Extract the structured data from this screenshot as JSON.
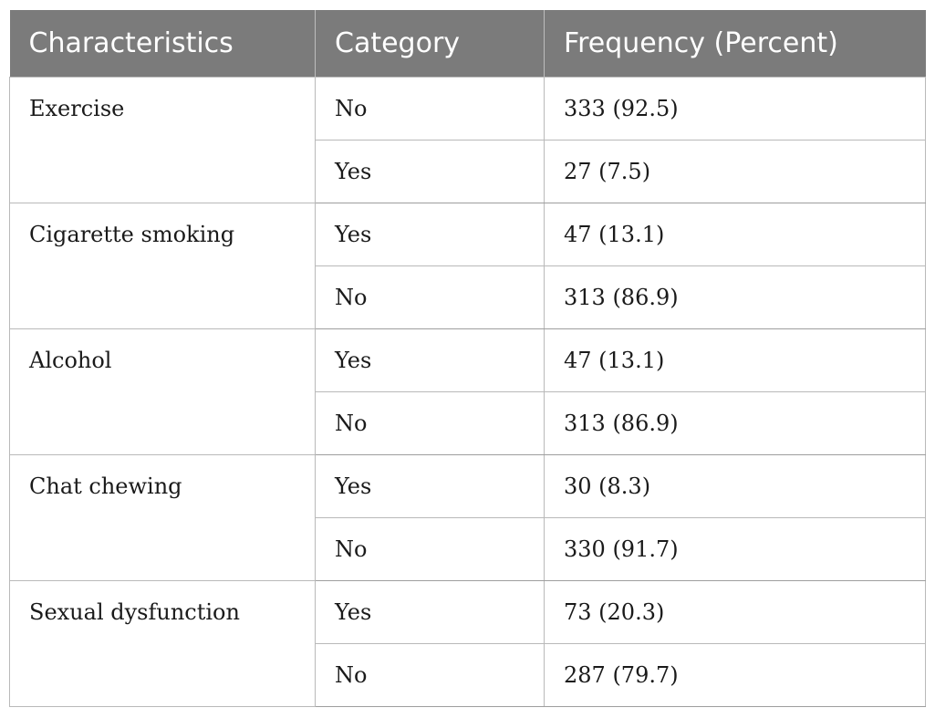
{
  "table": {
    "headers": [
      "Characteristics",
      "Category",
      "Frequency (Percent)"
    ],
    "groups": [
      {
        "characteristic": "Exercise",
        "rows": [
          {
            "category": "No",
            "frequency": "333 (92.5)"
          },
          {
            "category": "Yes",
            "frequency": "27 (7.5)"
          }
        ]
      },
      {
        "characteristic": "Cigarette smoking",
        "rows": [
          {
            "category": "Yes",
            "frequency": "47 (13.1)"
          },
          {
            "category": "No",
            "frequency": "313 (86.9)"
          }
        ]
      },
      {
        "characteristic": "Alcohol",
        "rows": [
          {
            "category": "Yes",
            "frequency": "47 (13.1)"
          },
          {
            "category": "No",
            "frequency": "313 (86.9)"
          }
        ]
      },
      {
        "characteristic": "Chat chewing",
        "rows": [
          {
            "category": "Yes",
            "frequency": "30 (8.3)"
          },
          {
            "category": "No",
            "frequency": "330 (91.7)"
          }
        ]
      },
      {
        "characteristic": "Sexual dysfunction",
        "rows": [
          {
            "category": "Yes",
            "frequency": "73 (20.3)"
          },
          {
            "category": "No",
            "frequency": "287 (79.7)"
          }
        ]
      }
    ]
  }
}
